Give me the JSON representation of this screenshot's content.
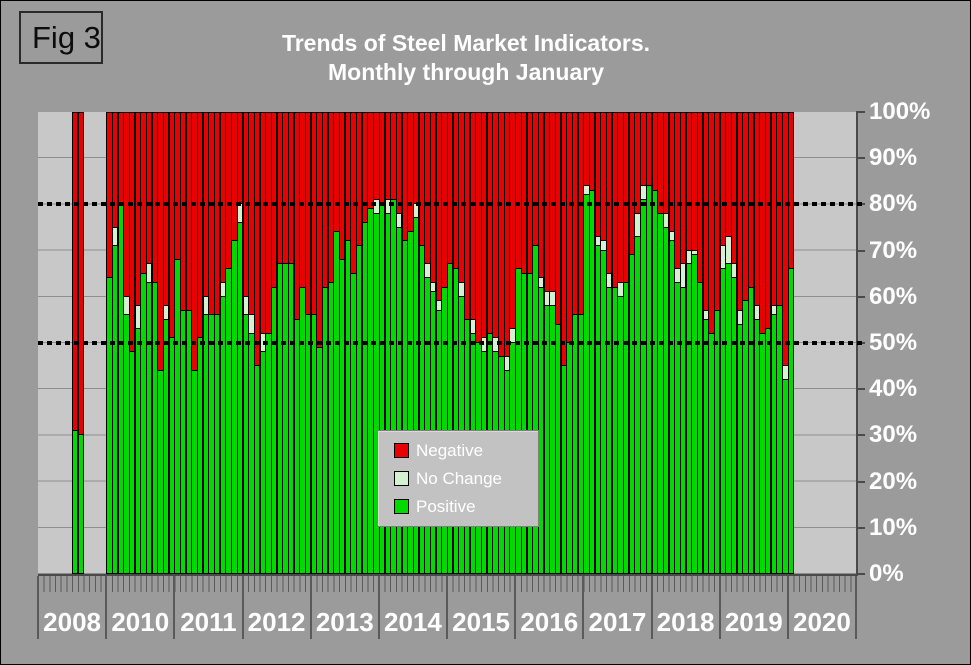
{
  "fig_label": "Fig 3",
  "title": {
    "line1": "Trends of Steel Market Indicators.",
    "line2": "Monthly through January"
  },
  "legend": [
    {
      "key": "negative",
      "label": "Negative"
    },
    {
      "key": "no_change",
      "label": "No Change"
    },
    {
      "key": "positive",
      "label": "Positive"
    }
  ],
  "chart_data": {
    "type": "bar",
    "subtype": "stacked-percent-monthly",
    "title": "Trends of Steel Market Indicators. Monthly through January",
    "ylabel": "",
    "xlabel": "",
    "ylim": [
      0,
      100
    ],
    "grid": true,
    "legend_position": "center-inside",
    "y_ticks": [
      "100%",
      "90%",
      "80%",
      "70%",
      "60%",
      "50%",
      "40%",
      "30%",
      "20%",
      "10%",
      "0%"
    ],
    "reference_lines_pct": [
      80,
      50
    ],
    "colors": {
      "negative": "#e90000",
      "no_change": "#d4f2d2",
      "positive": "#00da00",
      "plot_bg": "#c8c8c8",
      "page_bg": "#9b9b9b",
      "axis": "#4a4a4a",
      "label_text": "#ffffff"
    },
    "series_note": "per bar: p=Positive%, nc=No Change%, Negative%=100-p-nc; slot=month position 0-11 within year group",
    "year_groups": [
      {
        "year": "2008",
        "bars": [
          {
            "slot": 6,
            "p": 31,
            "nc": 0
          },
          {
            "slot": 7,
            "p": 30,
            "nc": 0
          }
        ]
      },
      {
        "year": "2010",
        "bars": [
          {
            "slot": 0,
            "p": 64,
            "nc": 0
          },
          {
            "slot": 1,
            "p": 71,
            "nc": 4
          },
          {
            "slot": 2,
            "p": 80,
            "nc": 0
          },
          {
            "slot": 3,
            "p": 56,
            "nc": 4
          },
          {
            "slot": 4,
            "p": 48,
            "nc": 0
          },
          {
            "slot": 5,
            "p": 53,
            "nc": 5
          },
          {
            "slot": 6,
            "p": 65,
            "nc": 0
          },
          {
            "slot": 7,
            "p": 63,
            "nc": 4
          },
          {
            "slot": 8,
            "p": 63,
            "nc": 0
          },
          {
            "slot": 9,
            "p": 44,
            "nc": 0
          },
          {
            "slot": 10,
            "p": 55,
            "nc": 3
          },
          {
            "slot": 11,
            "p": 51,
            "nc": 0
          }
        ]
      },
      {
        "year": "2011",
        "bars": [
          {
            "slot": 0,
            "p": 68,
            "nc": 0
          },
          {
            "slot": 1,
            "p": 57,
            "nc": 0
          },
          {
            "slot": 2,
            "p": 57,
            "nc": 0
          },
          {
            "slot": 3,
            "p": 44,
            "nc": 0
          },
          {
            "slot": 4,
            "p": 51,
            "nc": 0
          },
          {
            "slot": 5,
            "p": 56,
            "nc": 4
          },
          {
            "slot": 6,
            "p": 56,
            "nc": 0
          },
          {
            "slot": 7,
            "p": 56,
            "nc": 0
          },
          {
            "slot": 8,
            "p": 60,
            "nc": 3
          },
          {
            "slot": 9,
            "p": 66,
            "nc": 0
          },
          {
            "slot": 10,
            "p": 72,
            "nc": 0
          },
          {
            "slot": 11,
            "p": 76,
            "nc": 4
          }
        ]
      },
      {
        "year": "2012",
        "bars": [
          {
            "slot": 0,
            "p": 56,
            "nc": 4
          },
          {
            "slot": 1,
            "p": 52,
            "nc": 4
          },
          {
            "slot": 2,
            "p": 45,
            "nc": 0
          },
          {
            "slot": 3,
            "p": 48,
            "nc": 4
          },
          {
            "slot": 4,
            "p": 52,
            "nc": 0
          },
          {
            "slot": 5,
            "p": 62,
            "nc": 0
          },
          {
            "slot": 6,
            "p": 67,
            "nc": 0
          },
          {
            "slot": 7,
            "p": 67,
            "nc": 0
          },
          {
            "slot": 8,
            "p": 67,
            "nc": 0
          },
          {
            "slot": 9,
            "p": 55,
            "nc": 0
          },
          {
            "slot": 10,
            "p": 62,
            "nc": 0
          },
          {
            "slot": 11,
            "p": 56,
            "nc": 0
          }
        ]
      },
      {
        "year": "2013",
        "bars": [
          {
            "slot": 0,
            "p": 56,
            "nc": 0
          },
          {
            "slot": 1,
            "p": 49,
            "nc": 0
          },
          {
            "slot": 2,
            "p": 62,
            "nc": 0
          },
          {
            "slot": 3,
            "p": 63,
            "nc": 0
          },
          {
            "slot": 4,
            "p": 74,
            "nc": 0
          },
          {
            "slot": 5,
            "p": 68,
            "nc": 0
          },
          {
            "slot": 6,
            "p": 72,
            "nc": 0
          },
          {
            "slot": 7,
            "p": 65,
            "nc": 0
          },
          {
            "slot": 8,
            "p": 71,
            "nc": 0
          },
          {
            "slot": 9,
            "p": 76,
            "nc": 0
          },
          {
            "slot": 10,
            "p": 79,
            "nc": 0
          },
          {
            "slot": 11,
            "p": 78,
            "nc": 3
          }
        ]
      },
      {
        "year": "2014",
        "bars": [
          {
            "slot": 0,
            "p": 80,
            "nc": 0
          },
          {
            "slot": 1,
            "p": 78,
            "nc": 3
          },
          {
            "slot": 2,
            "p": 81,
            "nc": 0
          },
          {
            "slot": 3,
            "p": 75,
            "nc": 3
          },
          {
            "slot": 4,
            "p": 72,
            "nc": 0
          },
          {
            "slot": 5,
            "p": 74,
            "nc": 0
          },
          {
            "slot": 6,
            "p": 77,
            "nc": 3
          },
          {
            "slot": 7,
            "p": 71,
            "nc": 0
          },
          {
            "slot": 8,
            "p": 64,
            "nc": 3
          },
          {
            "slot": 9,
            "p": 61,
            "nc": 2
          },
          {
            "slot": 10,
            "p": 57,
            "nc": 2
          },
          {
            "slot": 11,
            "p": 62,
            "nc": 0
          }
        ]
      },
      {
        "year": "2015",
        "bars": [
          {
            "slot": 0,
            "p": 67,
            "nc": 0
          },
          {
            "slot": 1,
            "p": 66,
            "nc": 0
          },
          {
            "slot": 2,
            "p": 60,
            "nc": 3
          },
          {
            "slot": 3,
            "p": 55,
            "nc": 0
          },
          {
            "slot": 4,
            "p": 52,
            "nc": 3
          },
          {
            "slot": 5,
            "p": 50,
            "nc": 0
          },
          {
            "slot": 6,
            "p": 48,
            "nc": 3
          },
          {
            "slot": 7,
            "p": 52,
            "nc": 0
          },
          {
            "slot": 8,
            "p": 48,
            "nc": 3
          },
          {
            "slot": 9,
            "p": 47,
            "nc": 0
          },
          {
            "slot": 10,
            "p": 44,
            "nc": 3
          },
          {
            "slot": 11,
            "p": 50,
            "nc": 3
          }
        ]
      },
      {
        "year": "2016",
        "bars": [
          {
            "slot": 0,
            "p": 66,
            "nc": 0
          },
          {
            "slot": 1,
            "p": 65,
            "nc": 0
          },
          {
            "slot": 2,
            "p": 65,
            "nc": 0
          },
          {
            "slot": 3,
            "p": 71,
            "nc": 0
          },
          {
            "slot": 4,
            "p": 62,
            "nc": 2
          },
          {
            "slot": 5,
            "p": 58,
            "nc": 3
          },
          {
            "slot": 6,
            "p": 58,
            "nc": 3
          },
          {
            "slot": 7,
            "p": 54,
            "nc": 0
          },
          {
            "slot": 8,
            "p": 45,
            "nc": 0
          },
          {
            "slot": 9,
            "p": 50,
            "nc": 0
          },
          {
            "slot": 10,
            "p": 56,
            "nc": 0
          },
          {
            "slot": 11,
            "p": 56,
            "nc": 0
          }
        ]
      },
      {
        "year": "2017",
        "bars": [
          {
            "slot": 0,
            "p": 82,
            "nc": 2
          },
          {
            "slot": 1,
            "p": 83,
            "nc": 0
          },
          {
            "slot": 2,
            "p": 71,
            "nc": 2
          },
          {
            "slot": 3,
            "p": 70,
            "nc": 2
          },
          {
            "slot": 4,
            "p": 62,
            "nc": 3
          },
          {
            "slot": 5,
            "p": 62,
            "nc": 0
          },
          {
            "slot": 6,
            "p": 60,
            "nc": 3
          },
          {
            "slot": 7,
            "p": 63,
            "nc": 0
          },
          {
            "slot": 8,
            "p": 69,
            "nc": 0
          },
          {
            "slot": 9,
            "p": 73,
            "nc": 5
          },
          {
            "slot": 10,
            "p": 81,
            "nc": 3
          },
          {
            "slot": 11,
            "p": 84,
            "nc": 0
          }
        ]
      },
      {
        "year": "2018",
        "bars": [
          {
            "slot": 0,
            "p": 83,
            "nc": 0
          },
          {
            "slot": 1,
            "p": 78,
            "nc": 0
          },
          {
            "slot": 2,
            "p": 75,
            "nc": 3
          },
          {
            "slot": 3,
            "p": 72,
            "nc": 2
          },
          {
            "slot": 4,
            "p": 63,
            "nc": 3
          },
          {
            "slot": 5,
            "p": 62,
            "nc": 5
          },
          {
            "slot": 6,
            "p": 67,
            "nc": 3
          },
          {
            "slot": 7,
            "p": 69,
            "nc": 1
          },
          {
            "slot": 8,
            "p": 63,
            "nc": 0
          },
          {
            "slot": 9,
            "p": 55,
            "nc": 2
          },
          {
            "slot": 10,
            "p": 52,
            "nc": 0
          },
          {
            "slot": 11,
            "p": 57,
            "nc": 0
          }
        ]
      },
      {
        "year": "2019",
        "bars": [
          {
            "slot": 0,
            "p": 66,
            "nc": 5
          },
          {
            "slot": 1,
            "p": 67,
            "nc": 6
          },
          {
            "slot": 2,
            "p": 64,
            "nc": 3
          },
          {
            "slot": 3,
            "p": 54,
            "nc": 3
          },
          {
            "slot": 4,
            "p": 59,
            "nc": 0
          },
          {
            "slot": 5,
            "p": 62,
            "nc": 0
          },
          {
            "slot": 6,
            "p": 55,
            "nc": 3
          },
          {
            "slot": 7,
            "p": 52,
            "nc": 0
          },
          {
            "slot": 8,
            "p": 53,
            "nc": 0
          },
          {
            "slot": 9,
            "p": 56,
            "nc": 2
          },
          {
            "slot": 10,
            "p": 58,
            "nc": 0
          },
          {
            "slot": 11,
            "p": 42,
            "nc": 3
          }
        ]
      },
      {
        "year": "2020",
        "bars": [
          {
            "slot": 0,
            "p": 66,
            "nc": 0
          }
        ]
      }
    ]
  }
}
